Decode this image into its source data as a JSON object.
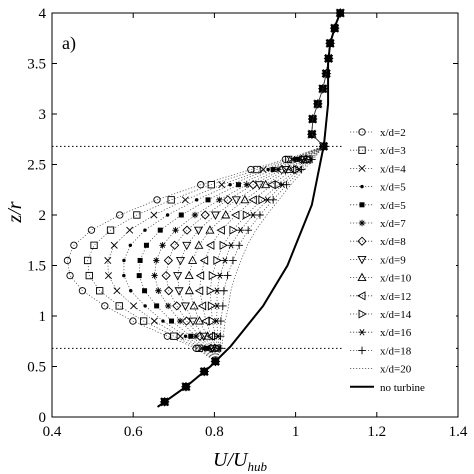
{
  "chart_data": {
    "type": "line",
    "panel_label": "a)",
    "xlabel": "U/U",
    "xlabel_sub": "hub",
    "ylabel": "z/r",
    "xlim": [
      0.4,
      1.4
    ],
    "ylim": [
      0,
      4
    ],
    "xticks": [
      0.4,
      0.6,
      0.8,
      1,
      1.2,
      1.4
    ],
    "yticks": [
      0,
      0.5,
      1,
      1.5,
      2,
      2.5,
      3,
      3.5,
      4
    ],
    "grid": false,
    "legend_position": "right",
    "reference_lines": [
      0.68,
      2.68
    ],
    "z": [
      0.15,
      0.3,
      0.45,
      0.55,
      0.68,
      0.8,
      0.95,
      1.1,
      1.25,
      1.4,
      1.55,
      1.7,
      1.85,
      2.0,
      2.15,
      2.3,
      2.45,
      2.55,
      2.68,
      2.8,
      2.95,
      3.1,
      3.25,
      3.4,
      3.55,
      3.7,
      3.85,
      4.0
    ],
    "series": [
      {
        "name": "x/d=2",
        "marker": "circle",
        "deficit": 0.55
      },
      {
        "name": "x/d=3",
        "marker": "square",
        "deficit": 0.5
      },
      {
        "name": "x/d=4",
        "marker": "x",
        "deficit": 0.45
      },
      {
        "name": "x/d=5",
        "marker": "dot",
        "deficit": 0.41
      },
      {
        "name": "x/d=5",
        "marker": "filled-square",
        "deficit": 0.37
      },
      {
        "name": "x/d=7",
        "marker": "asterisk",
        "deficit": 0.33
      },
      {
        "name": "x/d=8",
        "marker": "diamond",
        "deficit": 0.3
      },
      {
        "name": "x/d=9",
        "marker": "triangle-down",
        "deficit": 0.27
      },
      {
        "name": "x/d=10",
        "marker": "triangle-up",
        "deficit": 0.24
      },
      {
        "name": "x/d=12",
        "marker": "triangle-left",
        "deficit": 0.21
      },
      {
        "name": "x/d=14",
        "marker": "triangle-right",
        "deficit": 0.18
      },
      {
        "name": "x/d=16",
        "marker": "star",
        "deficit": 0.16
      },
      {
        "name": "x/d=18",
        "marker": "plus",
        "deficit": 0.14
      },
      {
        "name": "x/d=20",
        "marker": "none",
        "deficit": 0.12
      }
    ],
    "no_turbine": {
      "name": "no turbine",
      "z": [
        0.1,
        0.3,
        0.5,
        0.7,
        0.9,
        1.1,
        1.3,
        1.5,
        1.7,
        1.9,
        2.1,
        2.3,
        2.5,
        2.7,
        2.9,
        3.1,
        3.3,
        3.5,
        3.7,
        3.9,
        4.0
      ],
      "x": [
        0.66,
        0.73,
        0.79,
        0.84,
        0.88,
        0.92,
        0.95,
        0.98,
        1.0,
        1.02,
        1.04,
        1.05,
        1.06,
        1.07,
        1.075,
        1.08,
        1.08,
        1.08,
        1.085,
        1.1,
        1.11
      ]
    }
  }
}
